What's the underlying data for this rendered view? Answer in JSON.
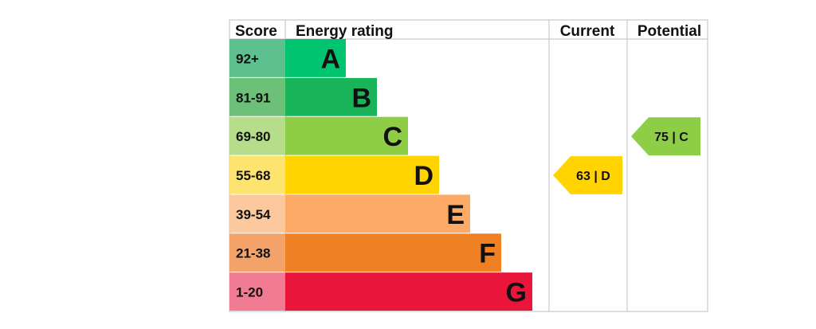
{
  "chart_data": {
    "type": "bar",
    "headers": {
      "score": "Score",
      "energy_rating": "Energy rating",
      "current": "Current",
      "potential": "Potential"
    },
    "bands": [
      {
        "score": "92+",
        "letter": "A",
        "score_color": "#5cc08f",
        "bar_color": "#00c46f"
      },
      {
        "score": "81-91",
        "letter": "B",
        "score_color": "#6cc077",
        "bar_color": "#19b359"
      },
      {
        "score": "69-80",
        "letter": "C",
        "score_color": "#b5dd8a",
        "bar_color": "#8dce46"
      },
      {
        "score": "55-68",
        "letter": "D",
        "score_color": "#fde36f",
        "bar_color": "#ffd400"
      },
      {
        "score": "39-54",
        "letter": "E",
        "score_color": "#fbc99d",
        "bar_color": "#fcaa65"
      },
      {
        "score": "21-38",
        "letter": "F",
        "score_color": "#f3a26a",
        "bar_color": "#ef8023"
      },
      {
        "score": "1-20",
        "letter": "G",
        "score_color": "#f07b92",
        "bar_color": "#e9153b"
      }
    ],
    "current": {
      "value": 63,
      "band": "D",
      "label": "63 | D",
      "color": "#ffd400"
    },
    "potential": {
      "value": 75,
      "band": "C",
      "label": "75 | C",
      "color": "#8dce46"
    }
  }
}
